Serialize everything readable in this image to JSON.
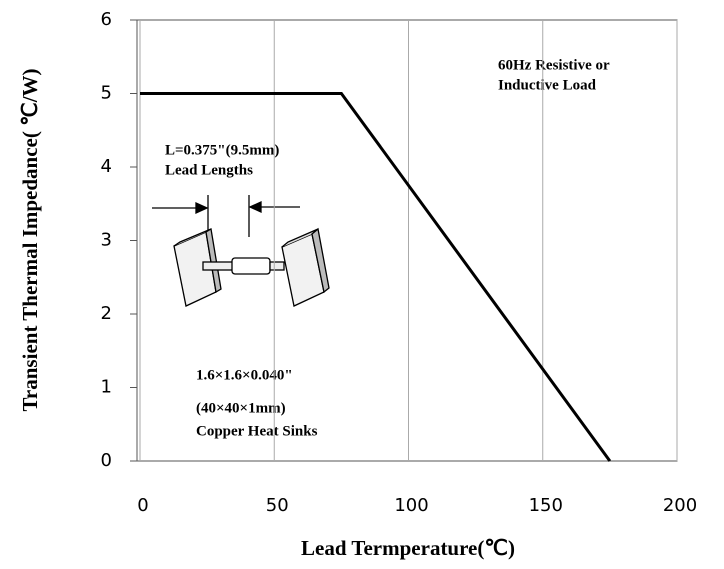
{
  "chart_data": {
    "type": "line",
    "x_label": "Lead Termperature(℃)",
    "y_label": "Transient Thermal Impedance( ℃/W)",
    "x": [
      0,
      75,
      175
    ],
    "series": [
      {
        "color": "#000000",
        "values": [
          5,
          5,
          0
        ]
      }
    ],
    "xlim": [
      0,
      200
    ],
    "ylim": [
      0,
      6
    ],
    "xticks": [
      0,
      50,
      100,
      150,
      200
    ],
    "yticks": [
      0,
      1,
      2,
      3,
      4,
      5,
      6
    ],
    "grid": "x",
    "annotations": [
      "60Hz Resistive or",
      "Inductive Load",
      "L=0.375\"(9.5mm)",
      "Lead Lengths",
      "1.6×1.6×0.040\"",
      "(40×40×1mm)",
      "Copper Heat Sinks"
    ]
  }
}
